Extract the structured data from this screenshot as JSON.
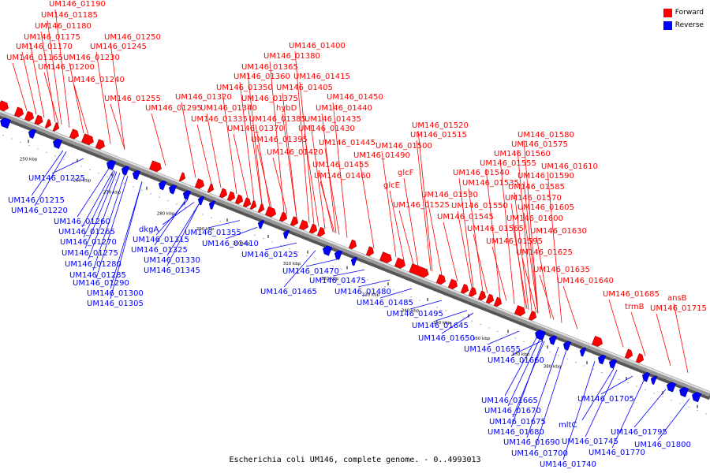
{
  "caption": "Escherichia coli UM146, complete genome. - 0..4993013",
  "legend": {
    "forward_label": "Forward",
    "reverse_label": "Reverse",
    "forward_color": "#ff0000",
    "reverse_color": "#0000ff"
  },
  "axis_ticks": [
    "250 kbp",
    "260 kbp",
    "270 kbp",
    "280 kbp",
    "290 kbp",
    "300 kbp",
    "310 kbp",
    "320 kbp",
    "330 kbp",
    "340 kbp",
    "350 kbp",
    "360 kbp",
    "370 kbp",
    "380 kbp"
  ],
  "forward_labels": [
    "UM146_01190",
    "UM146_01185",
    "UM146_01180",
    "UM146_01175",
    "UM146_01170",
    "UM146_01165",
    "UM146_01250",
    "UM146_01245",
    "UM146_01230",
    "UM146_01200",
    "UM146_01240",
    "UM146_01255",
    "UM146_01295",
    "UM146_01320",
    "UM146_01340",
    "UM146_01335",
    "UM146_01400",
    "UM146_01380",
    "UM146_01365",
    "UM146_01360",
    "UM146_01415",
    "UM146_01350",
    "UM146_01405",
    "UM146_01375",
    "hybD",
    "UM146_01450",
    "UM146_01440",
    "UM146_01385",
    "UM146_01370",
    "UM146_01435",
    "UM146_01430",
    "UM146_01395",
    "UM146_01445",
    "UM146_01420",
    "UM146_01455",
    "UM146_01460",
    "UM146_01520",
    "UM146_01515",
    "UM146_01500",
    "UM146_01490",
    "glcF",
    "glcE",
    "UM146_01525",
    "UM146_01580",
    "UM146_01575",
    "UM146_01560",
    "UM146_01555",
    "UM146_01610",
    "UM146_01540",
    "UM146_01590",
    "UM146_01535",
    "UM146_01585",
    "UM146_01530",
    "UM146_01570",
    "UM146_01550",
    "UM146_01605",
    "UM146_01545",
    "UM146_01600",
    "UM146_01565",
    "UM146_01630",
    "UM146_01595",
    "UM146_01625",
    "UM146_01635",
    "UM146_01640",
    "UM146_01685",
    "trmB",
    "ansB",
    "UM146_01715"
  ],
  "reverse_labels": [
    "UM146_01225",
    "UM146_01215",
    "UM146_01220",
    "UM146_01260",
    "UM146_01265",
    "UM146_01270",
    "dkgA",
    "UM146_01315",
    "UM146_01275",
    "UM146_01325",
    "UM146_01280",
    "UM146_01330",
    "UM146_01285",
    "UM146_01345",
    "UM146_01290",
    "UM146_01300",
    "UM146_01305",
    "UM146_01355",
    "UM146_01410",
    "UM146_01425",
    "UM146_01470",
    "UM146_01475",
    "UM146_01465",
    "UM146_01480",
    "UM146_01485",
    "UM146_01495",
    "UM146_01645",
    "UM146_01650",
    "UM146_01655",
    "UM146_01660",
    "UM146_01665",
    "UM146_01705",
    "UM146_01670",
    "UM146_01675",
    "mltC",
    "UM146_01680",
    "UM146_01690",
    "UM146_01745",
    "UM146_01795",
    "UM146_01700",
    "UM146_01770",
    "UM146_01800",
    "UM146_01740"
  ]
}
